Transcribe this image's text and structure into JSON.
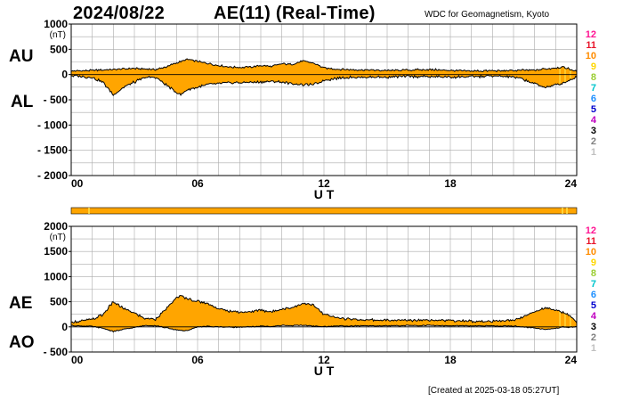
{
  "header": {
    "date": "2024/08/22",
    "title": "AE(11) (Real-Time)",
    "source": "WDC for Geomagnetism, Kyoto"
  },
  "footer": {
    "created": "[Created at 2025-03-18 05:27UT]"
  },
  "colors": {
    "fill": "#ffa500",
    "line": "#000000",
    "grid": "#aaaaaa",
    "mark": "#ffe24a"
  },
  "level_scale": [
    {
      "label": "12",
      "color": "#ff1493"
    },
    {
      "label": "11",
      "color": "#e8152a"
    },
    {
      "label": "10",
      "color": "#ff8c00"
    },
    {
      "label": "9",
      "color": "#ffd700"
    },
    {
      "label": "8",
      "color": "#9acd32"
    },
    {
      "label": "7",
      "color": "#00c5cd"
    },
    {
      "label": "6",
      "color": "#1e90ff"
    },
    {
      "label": "5",
      "color": "#0000cd"
    },
    {
      "label": "4",
      "color": "#c000c0"
    },
    {
      "label": "3",
      "color": "#000000"
    },
    {
      "label": "2",
      "color": "#808080"
    },
    {
      "label": "1",
      "color": "#c0c0c0"
    }
  ],
  "chart_data": [
    {
      "type": "area",
      "id": "au_al",
      "series": [
        {
          "name": "AU",
          "x": [
            0,
            1,
            1.5,
            2,
            2.5,
            3,
            3.5,
            4,
            4.5,
            5,
            5.5,
            6,
            6.5,
            7,
            7.5,
            8,
            8.5,
            9,
            9.5,
            10,
            10.5,
            11,
            11.5,
            12,
            12.5,
            13,
            14,
            15,
            16,
            17,
            18,
            19,
            20,
            21,
            22,
            22.5,
            23,
            23.3,
            23.6,
            24
          ],
          "y": [
            70,
            80,
            90,
            100,
            110,
            120,
            110,
            100,
            150,
            230,
            300,
            260,
            220,
            180,
            150,
            140,
            150,
            180,
            160,
            210,
            200,
            270,
            230,
            130,
            110,
            100,
            90,
            80,
            90,
            100,
            80,
            70,
            75,
            80,
            90,
            110,
            130,
            150,
            120,
            60
          ]
        },
        {
          "name": "AL",
          "x": [
            0,
            0.5,
            1,
            1.5,
            1.8,
            2,
            2.5,
            3,
            3.5,
            4,
            4.5,
            5,
            5.2,
            5.5,
            6,
            6.5,
            7,
            7.5,
            8,
            8.5,
            9,
            9.5,
            10,
            10.5,
            11,
            11.5,
            12,
            12.5,
            13,
            14,
            15,
            16,
            17,
            18,
            19,
            20,
            21,
            21.5,
            22,
            22.5,
            23,
            23.5,
            24
          ],
          "y": [
            -20,
            -40,
            -60,
            -150,
            -300,
            -400,
            -250,
            -150,
            -60,
            -50,
            -200,
            -350,
            -400,
            -300,
            -250,
            -200,
            -180,
            -160,
            -160,
            -150,
            -150,
            -140,
            -150,
            -180,
            -200,
            -200,
            -120,
            -80,
            -60,
            -50,
            -50,
            -40,
            -40,
            -50,
            -40,
            -30,
            -50,
            -100,
            -180,
            -250,
            -200,
            -150,
            -40
          ]
        }
      ],
      "ylim": [
        -2000,
        1000
      ],
      "yticks": [
        "1000",
        "500",
        "0",
        "- 500",
        "- 1000",
        "- 1500",
        "- 2000"
      ],
      "ytick_values": [
        1000,
        500,
        0,
        -500,
        -1000,
        -1500,
        -2000
      ],
      "unit": "(nT)",
      "xlim": [
        0,
        24
      ],
      "xticks": [
        "00",
        "06",
        "12",
        "18",
        "24"
      ],
      "xtick_values": [
        0,
        6,
        12,
        18,
        24
      ],
      "xlabel": "U T",
      "label_upper": "AU",
      "label_lower": "AL",
      "grid": true
    },
    {
      "type": "area",
      "id": "ae_ao",
      "series": [
        {
          "name": "AE",
          "x": [
            0,
            0.5,
            1,
            1.5,
            1.8,
            2,
            2.5,
            3,
            3.5,
            4,
            4.5,
            5,
            5.2,
            5.5,
            6,
            6.5,
            7,
            7.5,
            8,
            8.5,
            9,
            9.5,
            10,
            10.5,
            11,
            11.5,
            12,
            12.5,
            13,
            14,
            15,
            16,
            17,
            18,
            19,
            20,
            21,
            21.5,
            22,
            22.5,
            23,
            23.5,
            24
          ],
          "y": [
            90,
            120,
            150,
            240,
            400,
            500,
            360,
            270,
            170,
            150,
            350,
            580,
            620,
            560,
            510,
            460,
            360,
            310,
            300,
            300,
            330,
            300,
            360,
            380,
            470,
            430,
            250,
            190,
            160,
            140,
            130,
            130,
            140,
            130,
            110,
            105,
            130,
            210,
            300,
            380,
            330,
            270,
            100
          ]
        },
        {
          "name": "AO",
          "x": [
            0,
            1,
            1.5,
            2,
            2.5,
            3,
            3.5,
            4,
            4.5,
            5,
            5.5,
            6,
            6.5,
            7,
            7.5,
            8,
            8.5,
            9,
            9.5,
            10,
            10.5,
            11,
            11.5,
            12,
            12.5,
            13,
            14,
            15,
            16,
            17,
            18,
            19,
            20,
            21,
            22,
            22.5,
            23,
            23.3,
            23.6,
            24
          ],
          "y": [
            25,
            10,
            -30,
            -90,
            -50,
            -10,
            25,
            25,
            -20,
            -60,
            -80,
            0,
            10,
            0,
            -5,
            -5,
            0,
            15,
            5,
            30,
            25,
            35,
            15,
            5,
            15,
            20,
            20,
            20,
            25,
            30,
            20,
            20,
            20,
            15,
            -20,
            -50,
            -35,
            0,
            -15,
            10
          ]
        }
      ],
      "ylim": [
        -500,
        2000
      ],
      "yticks": [
        "2000",
        "1500",
        "1000",
        "500",
        "0",
        "- 500"
      ],
      "ytick_values": [
        2000,
        1500,
        1000,
        500,
        0,
        -500
      ],
      "unit": "(nT)",
      "xlim": [
        0,
        24
      ],
      "xticks": [
        "00",
        "06",
        "12",
        "18",
        "24"
      ],
      "xtick_values": [
        0,
        6,
        12,
        18,
        24
      ],
      "xlabel": "U T",
      "label_upper": "AE",
      "label_lower": "AO",
      "grid": true
    }
  ]
}
